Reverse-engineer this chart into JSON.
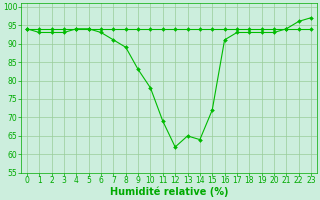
{
  "x": [
    0,
    1,
    2,
    3,
    4,
    5,
    6,
    7,
    8,
    9,
    10,
    11,
    12,
    13,
    14,
    15,
    16,
    17,
    18,
    19,
    20,
    21,
    22,
    23
  ],
  "y_main": [
    94,
    93,
    93,
    93,
    94,
    94,
    93,
    91,
    89,
    83,
    78,
    69,
    62,
    65,
    64,
    72,
    91,
    93,
    93,
    93,
    93,
    94,
    96,
    97
  ],
  "y_flat": [
    94,
    94,
    94,
    94,
    94,
    94,
    94,
    94,
    94,
    94,
    94,
    94,
    94,
    94,
    94,
    94,
    94,
    94,
    94,
    94,
    94,
    94,
    94,
    94
  ],
  "line_color": "#00bb00",
  "marker": "D",
  "marker_size": 2.0,
  "bg_color": "#cceedd",
  "grid_color": "#99cc99",
  "xlabel": "Humidité relative (%)",
  "xlabel_color": "#00aa00",
  "ylim": [
    55,
    101
  ],
  "xlim": [
    -0.5,
    23.5
  ],
  "yticks": [
    55,
    60,
    65,
    70,
    75,
    80,
    85,
    90,
    95,
    100
  ],
  "xticks": [
    0,
    1,
    2,
    3,
    4,
    5,
    6,
    7,
    8,
    9,
    10,
    11,
    12,
    13,
    14,
    15,
    16,
    17,
    18,
    19,
    20,
    21,
    22,
    23
  ],
  "tick_color": "#00aa00",
  "tick_label_fontsize": 5.5,
  "xlabel_fontsize": 7.0
}
